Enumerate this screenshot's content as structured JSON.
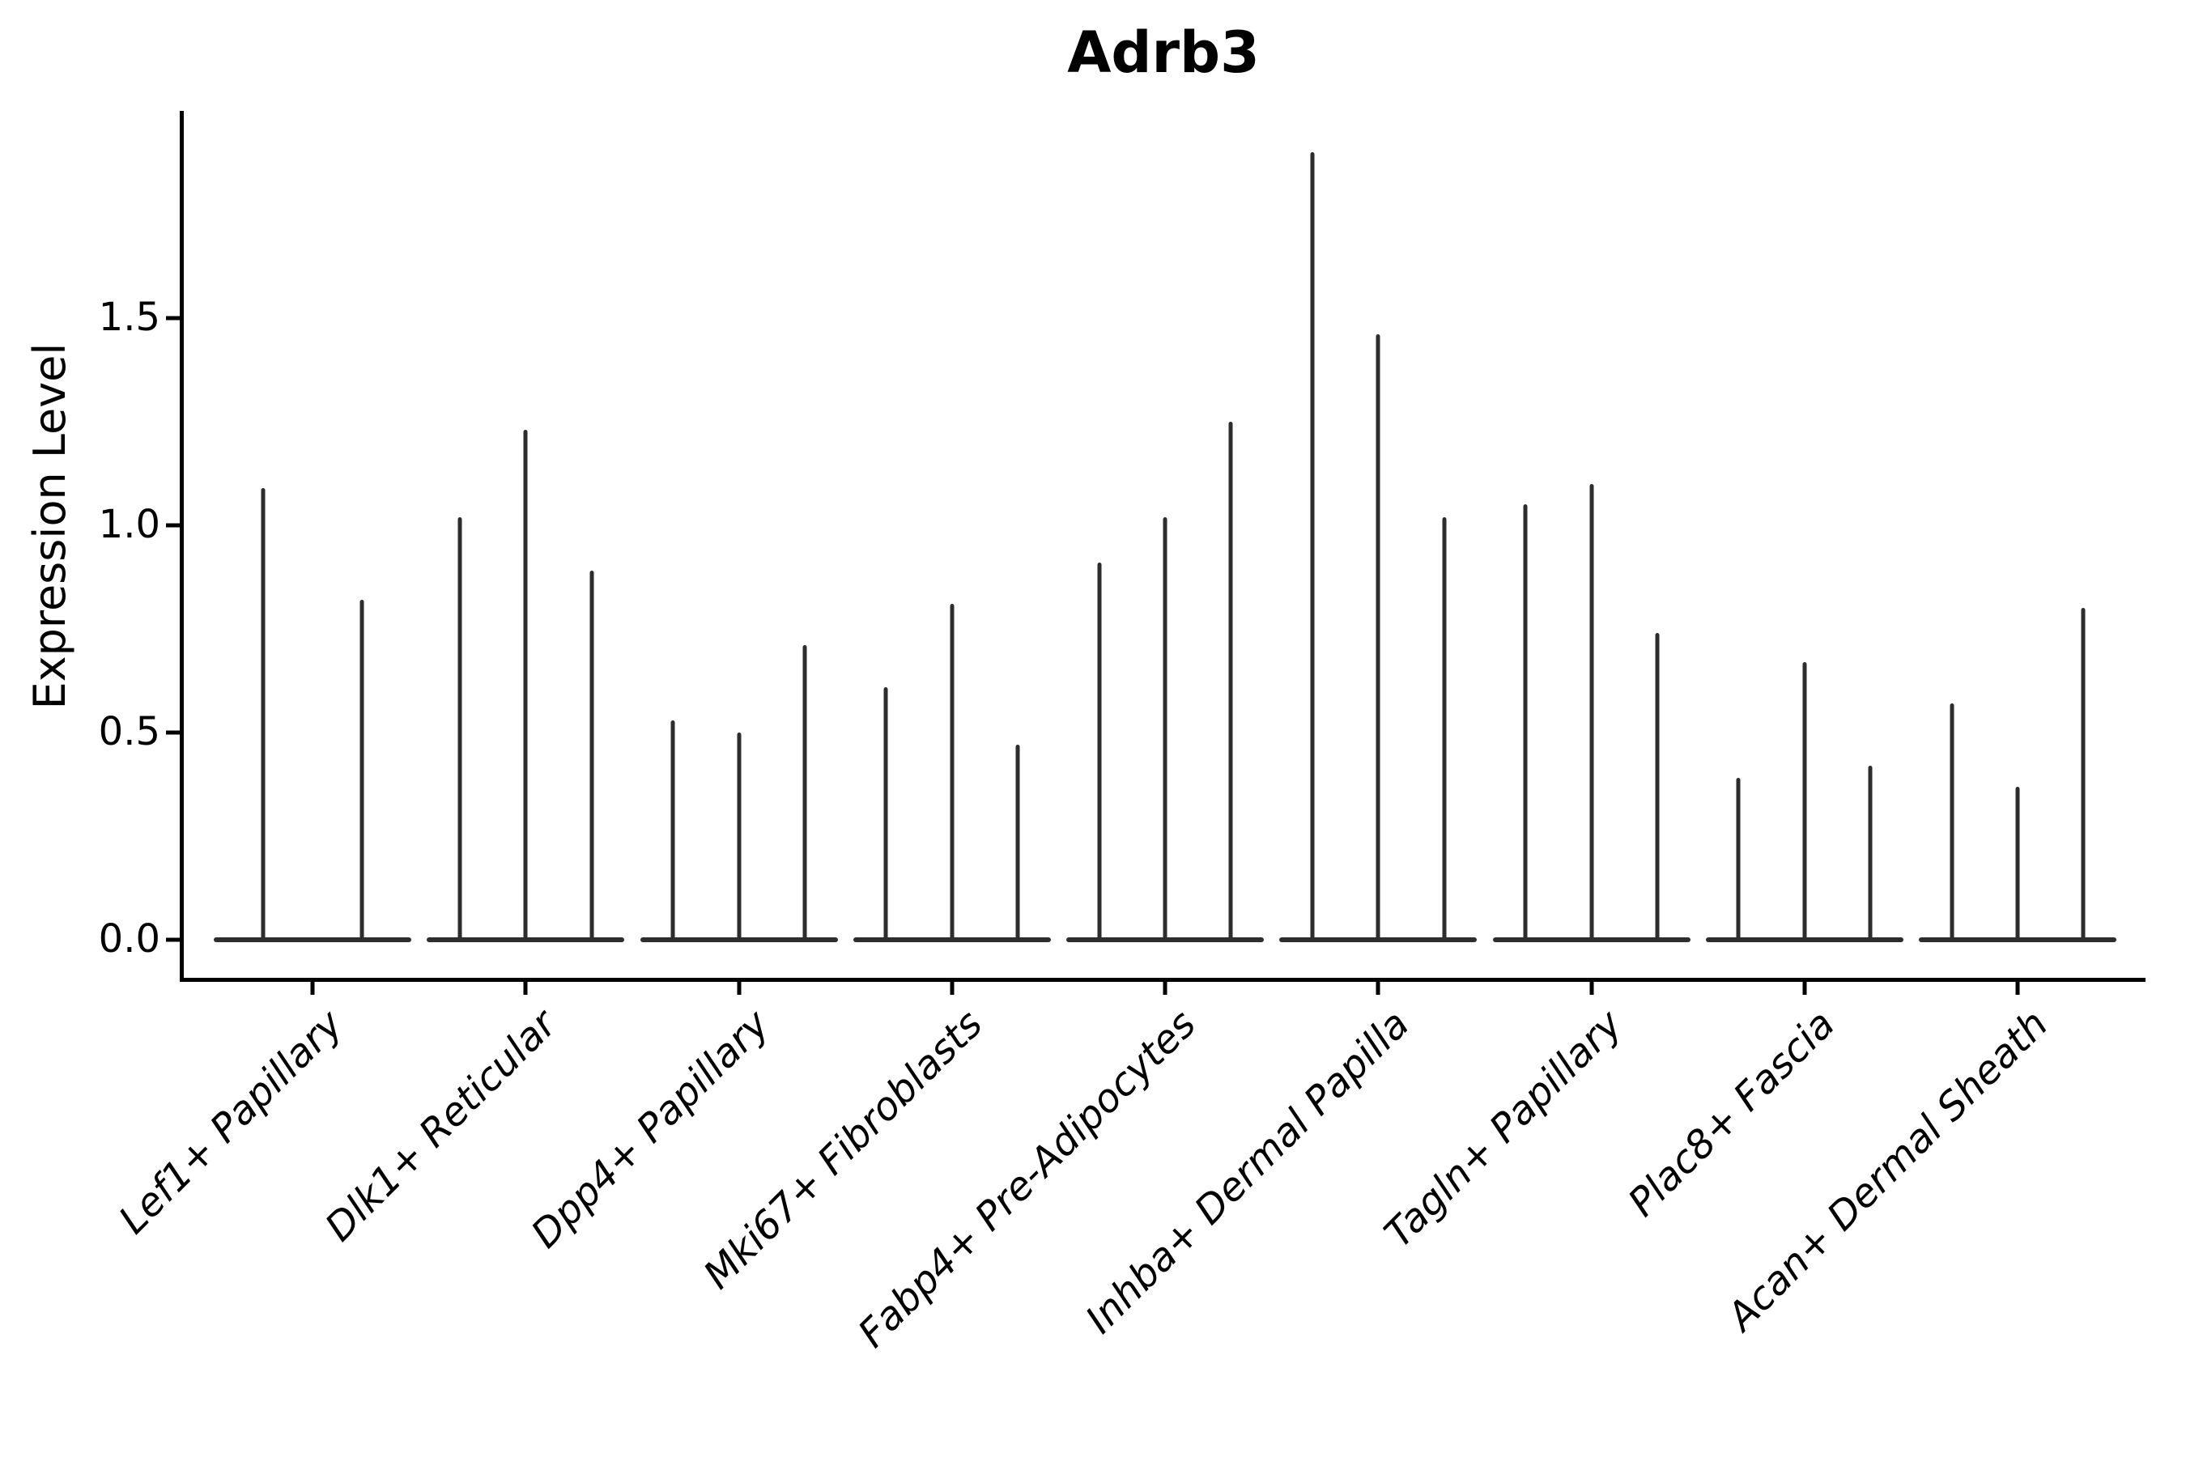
{
  "title": "Adrb3",
  "axes": {
    "ylabel": "Expression Level",
    "ytick_labels": [
      "0.0",
      "0.5",
      "1.0",
      "1.5"
    ],
    "ytick_values": [
      0.0,
      0.5,
      1.0,
      1.5
    ],
    "ylim": [
      0.0,
      2.0
    ]
  },
  "colors": {
    "violin": "#2d2d2d",
    "axis": "#000000",
    "background": "#ffffff"
  },
  "chart_data": {
    "type": "violin",
    "title": "Adrb3",
    "xlabel": "",
    "ylabel": "Expression Level",
    "ylim": [
      0.0,
      2.0
    ],
    "yticks": [
      0.0,
      0.5,
      1.0,
      1.5
    ],
    "grid": false,
    "legend": "none",
    "description": "Violin plot of Adrb3 expression per fibroblast cluster; each violin is collapsed to a thin vertical spike (upper tail) with a flattened body at 0. Each category contains 2-3 violins.",
    "categories": [
      "Lef1+ Papillary",
      "Dlk1+ Reticular",
      "Dpp4+ Papillary",
      "Mki67+ Fibroblasts",
      "Fabp4+ Pre-Adipocytes",
      "Inhba+ Dermal Papilla",
      "Tagln+ Papillary",
      "Plac8+ Fascia",
      "Acan+ Dermal Sheath"
    ],
    "series": [
      {
        "category": "Lef1+ Papillary",
        "spike_maxima": [
          1.09,
          0.82
        ],
        "body_value": 0.0
      },
      {
        "category": "Dlk1+ Reticular",
        "spike_maxima": [
          1.02,
          1.23,
          0.89
        ],
        "body_value": 0.0
      },
      {
        "category": "Dpp4+ Papillary",
        "spike_maxima": [
          0.53,
          0.5,
          0.71
        ],
        "body_value": 0.0
      },
      {
        "category": "Mki67+ Fibroblasts",
        "spike_maxima": [
          0.61,
          0.81,
          0.47
        ],
        "body_value": 0.0
      },
      {
        "category": "Fabp4+ Pre-Adipocytes",
        "spike_maxima": [
          0.91,
          1.02,
          1.25
        ],
        "body_value": 0.0
      },
      {
        "category": "Inhba+ Dermal Papilla",
        "spike_maxima": [
          1.9,
          1.46,
          1.02
        ],
        "body_value": 0.0
      },
      {
        "category": "Tagln+ Papillary",
        "spike_maxima": [
          1.05,
          1.1,
          0.74
        ],
        "body_value": 0.0
      },
      {
        "category": "Plac8+ Fascia",
        "spike_maxima": [
          0.39,
          0.67,
          0.42
        ],
        "body_value": 0.0
      },
      {
        "category": "Acan+ Dermal Sheath",
        "spike_maxima": [
          0.57,
          0.37,
          0.8
        ],
        "body_value": 0.0
      }
    ]
  }
}
